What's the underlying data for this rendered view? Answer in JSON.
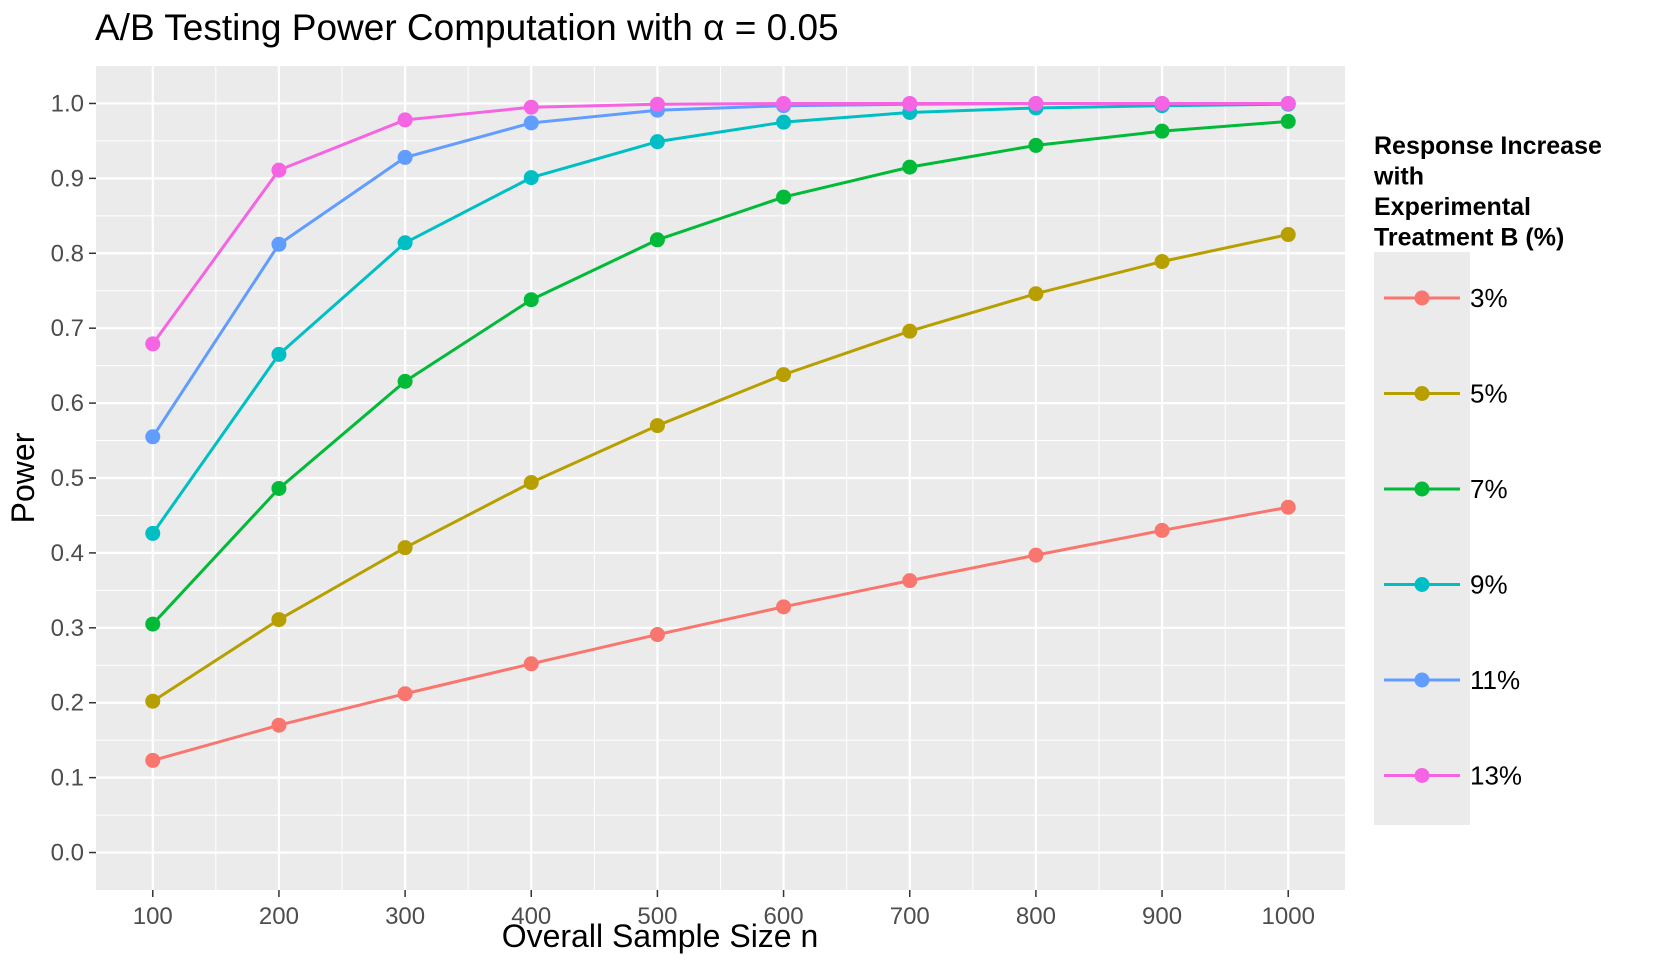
{
  "chart_data": {
    "type": "line",
    "title_prefix": "A/B Testing Power Computation with ",
    "title_symbol": "α",
    "title_suffix": " = 0.05",
    "xlabel": "Overall Sample Size n",
    "ylabel": "Power",
    "x": [
      100,
      200,
      300,
      400,
      500,
      600,
      700,
      800,
      900,
      1000
    ],
    "x_ticks": [
      "100",
      "200",
      "300",
      "400",
      "500",
      "600",
      "700",
      "800",
      "900",
      "1000"
    ],
    "y_ticks": [
      "0.0",
      "0.1",
      "0.2",
      "0.3",
      "0.4",
      "0.5",
      "0.6",
      "0.7",
      "0.8",
      "0.9",
      "1.0"
    ],
    "xlim": [
      55,
      1045
    ],
    "ylim": [
      -0.05,
      1.05
    ],
    "grid": true,
    "legend": {
      "position": "right",
      "title_lines": [
        "Response Increase",
        "with",
        "Experimental",
        "Treatment B (%)"
      ]
    },
    "series": [
      {
        "name": "3%",
        "color": "#F8766D",
        "values": [
          0.123,
          0.17,
          0.212,
          0.252,
          0.291,
          0.328,
          0.363,
          0.397,
          0.43,
          0.461
        ]
      },
      {
        "name": "5%",
        "color": "#B79F00",
        "values": [
          0.202,
          0.311,
          0.407,
          0.494,
          0.57,
          0.638,
          0.696,
          0.746,
          0.789,
          0.825
        ]
      },
      {
        "name": "7%",
        "color": "#00BA38",
        "values": [
          0.305,
          0.486,
          0.629,
          0.738,
          0.818,
          0.875,
          0.915,
          0.944,
          0.963,
          0.976
        ]
      },
      {
        "name": "9%",
        "color": "#00BFC4",
        "values": [
          0.426,
          0.665,
          0.814,
          0.901,
          0.949,
          0.975,
          0.988,
          0.994,
          0.997,
          0.999
        ]
      },
      {
        "name": "11%",
        "color": "#619CFF",
        "values": [
          0.555,
          0.812,
          0.928,
          0.974,
          0.991,
          0.997,
          0.999,
          1.0,
          1.0,
          1.0
        ]
      },
      {
        "name": "13%",
        "color": "#F564E3",
        "values": [
          0.679,
          0.911,
          0.978,
          0.995,
          0.999,
          1.0,
          1.0,
          1.0,
          1.0,
          1.0
        ]
      }
    ]
  }
}
